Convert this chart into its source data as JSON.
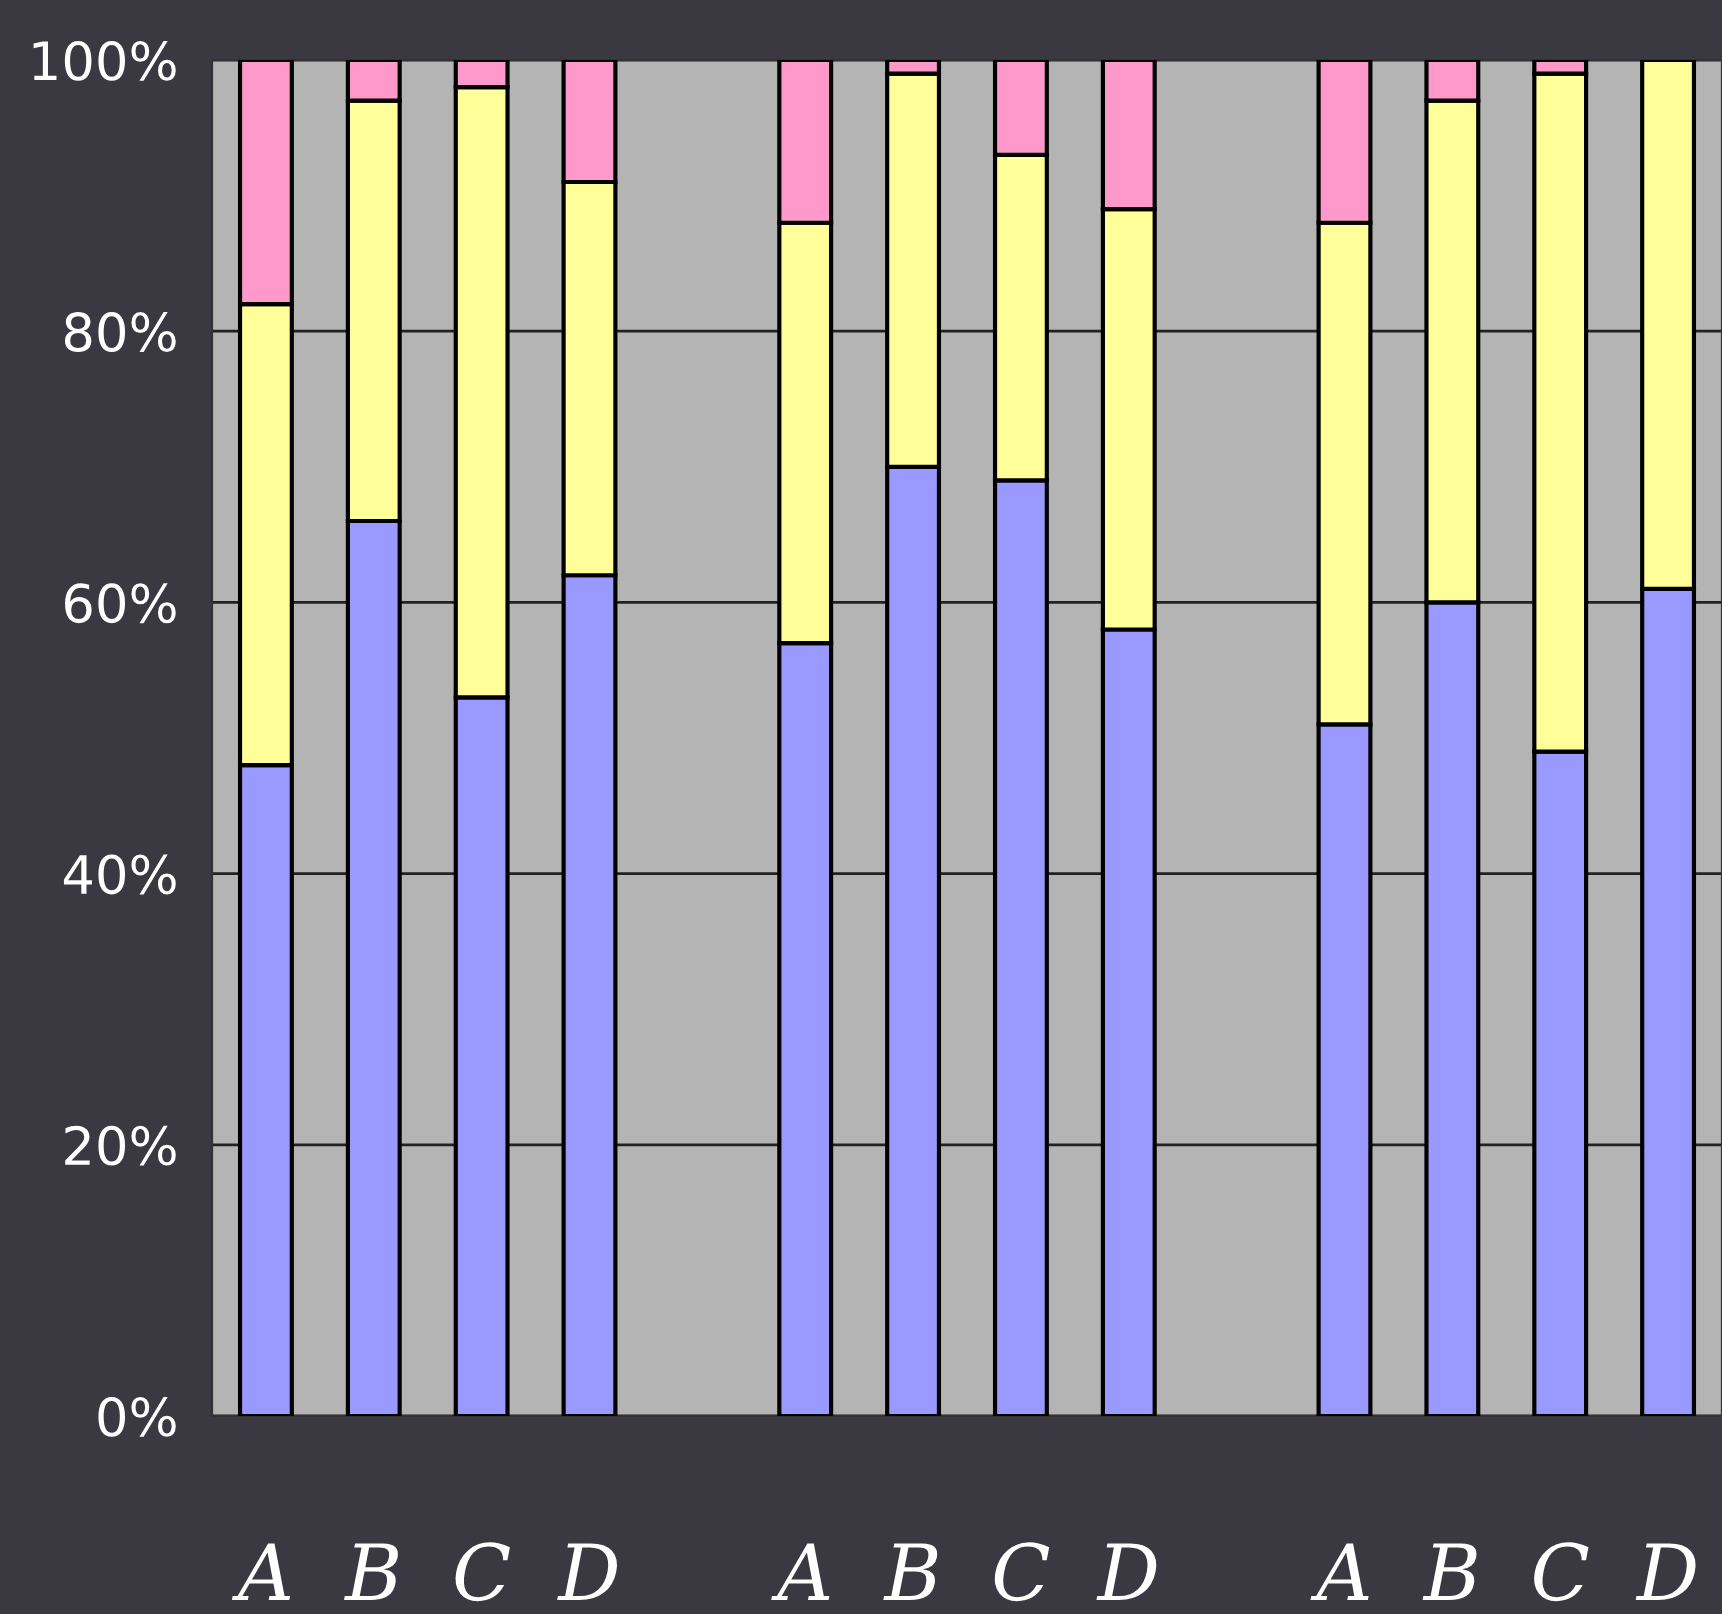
{
  "chart_data": {
    "type": "bar",
    "stacked": true,
    "categories": [
      "A",
      "B",
      "C",
      "D",
      null,
      "A",
      "B",
      "C",
      "D",
      null,
      "A",
      "B",
      "C",
      "D"
    ],
    "series": [
      {
        "color": "#9999ff",
        "values": [
          48,
          66,
          53,
          62,
          null,
          57,
          70,
          69,
          58,
          null,
          51,
          60,
          49,
          61
        ]
      },
      {
        "color": "#ffff99",
        "values": [
          34,
          31,
          45,
          29,
          null,
          31,
          29,
          24,
          31,
          null,
          37,
          37,
          50,
          39
        ]
      },
      {
        "color": "#ff99cc",
        "values": [
          18,
          3,
          2,
          9,
          null,
          12,
          1,
          7,
          11,
          null,
          12,
          3,
          1,
          0
        ]
      }
    ],
    "ylim": [
      0,
      100
    ],
    "yticks": [
      {
        "value": 0,
        "label": "0%"
      },
      {
        "value": 20,
        "label": "20%"
      },
      {
        "value": 40,
        "label": "40%"
      },
      {
        "value": 60,
        "label": "60%"
      },
      {
        "value": 80,
        "label": "80%"
      },
      {
        "value": 100,
        "label": "100%"
      }
    ],
    "grid": "y",
    "legend": false
  }
}
